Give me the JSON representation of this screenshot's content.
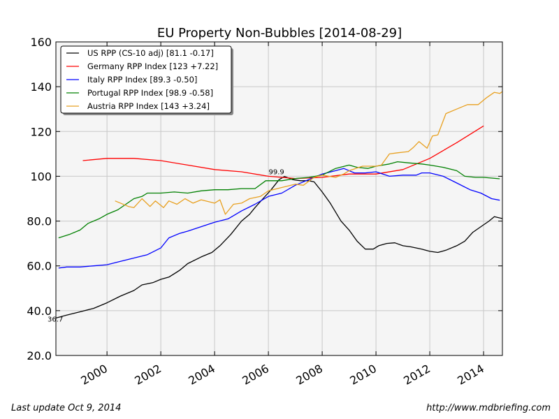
{
  "footer": {
    "last_update": "Last update Oct  9, 2014",
    "url": "http://www.mdbriefing.com"
  },
  "chart_data": {
    "type": "line",
    "title": "EU Property Non-Bubbles  [2014-08-29]",
    "xlabel": "",
    "ylabel": "",
    "xlim": [
      1998.1,
      2014.7
    ],
    "ylim": [
      20,
      160
    ],
    "grid": true,
    "legend_position": "top-left",
    "x_ticks": [
      2000,
      2002,
      2004,
      2006,
      2008,
      2010,
      2012,
      2014
    ],
    "x_tick_labels": [
      "2000",
      "2002",
      "2004",
      "2006",
      "2008",
      "2010",
      "2012",
      "2014"
    ],
    "y_ticks": [
      20,
      40,
      60,
      80,
      100,
      120,
      140,
      160
    ],
    "y_tick_labels": [
      "20.0",
      "40.0",
      "60.0",
      "80.0",
      "100",
      "120",
      "140",
      "160"
    ],
    "annotations": [
      {
        "text": "99.9",
        "x": 2006.3,
        "y": 99.9
      },
      {
        "text": "36.7",
        "x": 1998.1,
        "y": 36.7
      }
    ],
    "series": [
      {
        "name": "US RPP (CS-10 adj) [81.1 -0.17]",
        "color": "#000000",
        "points": [
          [
            1998.1,
            36.7
          ],
          [
            1998.5,
            38
          ],
          [
            1999,
            39.5
          ],
          [
            1999.5,
            41
          ],
          [
            2000,
            43.5
          ],
          [
            2000.5,
            46.5
          ],
          [
            2001,
            49
          ],
          [
            2001.3,
            51.5
          ],
          [
            2001.7,
            52.5
          ],
          [
            2002,
            54
          ],
          [
            2002.3,
            55
          ],
          [
            2002.7,
            58
          ],
          [
            2003,
            61
          ],
          [
            2003.5,
            64
          ],
          [
            2003.9,
            66
          ],
          [
            2004.2,
            69
          ],
          [
            2004.6,
            74
          ],
          [
            2005,
            80
          ],
          [
            2005.3,
            83
          ],
          [
            2005.5,
            86
          ],
          [
            2005.8,
            90
          ],
          [
            2006.1,
            94
          ],
          [
            2006.4,
            98.5
          ],
          [
            2006.6,
            99.9
          ],
          [
            2006.9,
            98.5
          ],
          [
            2007.2,
            98
          ],
          [
            2007.5,
            98
          ],
          [
            2007.7,
            97.5
          ],
          [
            2008,
            93
          ],
          [
            2008.3,
            88
          ],
          [
            2008.7,
            80
          ],
          [
            2009,
            76
          ],
          [
            2009.3,
            71
          ],
          [
            2009.6,
            67.5
          ],
          [
            2009.9,
            67.5
          ],
          [
            2010.1,
            69
          ],
          [
            2010.4,
            70
          ],
          [
            2010.7,
            70.3
          ],
          [
            2011,
            69
          ],
          [
            2011.3,
            68.5
          ],
          [
            2011.7,
            67.5
          ],
          [
            2012,
            66.5
          ],
          [
            2012.3,
            66
          ],
          [
            2012.6,
            67
          ],
          [
            2013,
            69
          ],
          [
            2013.3,
            71
          ],
          [
            2013.6,
            75
          ],
          [
            2013.9,
            77.5
          ],
          [
            2014.2,
            80
          ],
          [
            2014.4,
            82
          ],
          [
            2014.7,
            81.1
          ]
        ]
      },
      {
        "name": "Germany RPP Index [123 +7.22]",
        "color": "#ff0000",
        "points": [
          [
            1999.1,
            107
          ],
          [
            2000,
            108
          ],
          [
            2001,
            108
          ],
          [
            2002,
            107
          ],
          [
            2003,
            105
          ],
          [
            2004,
            103
          ],
          [
            2005,
            102
          ],
          [
            2006,
            100
          ],
          [
            2007,
            99
          ],
          [
            2008,
            99.5
          ],
          [
            2009,
            101
          ],
          [
            2010,
            101
          ],
          [
            2011,
            103
          ],
          [
            2012,
            108
          ],
          [
            2013,
            115
          ],
          [
            2014,
            122.5
          ]
        ]
      },
      {
        "name": "Italy RPP Index [89.3 -0.50]",
        "color": "#0000ff",
        "points": [
          [
            1998.2,
            59
          ],
          [
            1998.5,
            59.5
          ],
          [
            1999,
            59.5
          ],
          [
            1999.5,
            60
          ],
          [
            2000,
            60.5
          ],
          [
            2000.5,
            62
          ],
          [
            2001,
            63.5
          ],
          [
            2001.5,
            65
          ],
          [
            2002,
            68
          ],
          [
            2002.3,
            72.5
          ],
          [
            2002.7,
            74.5
          ],
          [
            2003,
            75.5
          ],
          [
            2003.5,
            77.5
          ],
          [
            2004,
            79.5
          ],
          [
            2004.5,
            81
          ],
          [
            2005,
            84.5
          ],
          [
            2005.5,
            87.5
          ],
          [
            2006,
            91
          ],
          [
            2006.5,
            92.5
          ],
          [
            2007,
            96
          ],
          [
            2007.5,
            98.5
          ],
          [
            2008,
            101
          ],
          [
            2008.5,
            102.5
          ],
          [
            2008.8,
            103.5
          ],
          [
            2009.2,
            101.5
          ],
          [
            2009.6,
            101.5
          ],
          [
            2010,
            102
          ],
          [
            2010.5,
            100
          ],
          [
            2011,
            100.5
          ],
          [
            2011.5,
            100.5
          ],
          [
            2011.7,
            101.5
          ],
          [
            2012,
            101.5
          ],
          [
            2012.5,
            100
          ],
          [
            2013,
            97
          ],
          [
            2013.5,
            94
          ],
          [
            2013.9,
            92.5
          ],
          [
            2014.3,
            90
          ],
          [
            2014.6,
            89.3
          ]
        ]
      },
      {
        "name": "Portugal RPP Index [98.9 -0.58]",
        "color": "#008000",
        "points": [
          [
            1998.2,
            72.5
          ],
          [
            1998.6,
            74
          ],
          [
            1999,
            76
          ],
          [
            1999.3,
            79
          ],
          [
            1999.7,
            81
          ],
          [
            2000,
            83
          ],
          [
            2000.4,
            85
          ],
          [
            2000.7,
            87.5
          ],
          [
            2001,
            90
          ],
          [
            2001.3,
            91
          ],
          [
            2001.5,
            92.5
          ],
          [
            2002,
            92.5
          ],
          [
            2002.5,
            93
          ],
          [
            2003,
            92.5
          ],
          [
            2003.5,
            93.5
          ],
          [
            2004,
            94
          ],
          [
            2004.5,
            94
          ],
          [
            2005,
            94.5
          ],
          [
            2005.5,
            94.5
          ],
          [
            2005.9,
            98
          ],
          [
            2006.5,
            98
          ],
          [
            2007,
            99
          ],
          [
            2007.5,
            99.5
          ],
          [
            2008,
            100.5
          ],
          [
            2008.5,
            103.5
          ],
          [
            2009,
            105
          ],
          [
            2009.3,
            104
          ],
          [
            2009.7,
            103.5
          ],
          [
            2010,
            104.5
          ],
          [
            2010.5,
            105.5
          ],
          [
            2010.8,
            106.5
          ],
          [
            2011.2,
            106
          ],
          [
            2011.7,
            105.5
          ],
          [
            2012,
            105
          ],
          [
            2012.5,
            104
          ],
          [
            2013,
            102.5
          ],
          [
            2013.3,
            100
          ],
          [
            2013.7,
            99.5
          ],
          [
            2014,
            99.5
          ],
          [
            2014.6,
            98.9
          ]
        ]
      },
      {
        "name": "Austria RPP Index [143 +3.24]",
        "color": "#e8a020",
        "points": [
          [
            2000.3,
            89
          ],
          [
            2000.8,
            86.5
          ],
          [
            2001,
            86
          ],
          [
            2001.3,
            90
          ],
          [
            2001.6,
            86.5
          ],
          [
            2001.8,
            89
          ],
          [
            2002.1,
            86
          ],
          [
            2002.3,
            89
          ],
          [
            2002.6,
            87.5
          ],
          [
            2002.9,
            90
          ],
          [
            2003.2,
            88
          ],
          [
            2003.5,
            89.5
          ],
          [
            2004,
            88
          ],
          [
            2004.2,
            89.5
          ],
          [
            2004.4,
            83
          ],
          [
            2004.7,
            87.5
          ],
          [
            2005,
            88
          ],
          [
            2005.3,
            90
          ],
          [
            2005.7,
            91
          ],
          [
            2006,
            93.5
          ],
          [
            2006.5,
            95
          ],
          [
            2007,
            96.5
          ],
          [
            2007.3,
            96
          ],
          [
            2007.7,
            99.5
          ],
          [
            2008,
            100.5
          ],
          [
            2008.5,
            99.5
          ],
          [
            2008.8,
            101
          ],
          [
            2009,
            102.5
          ],
          [
            2009.5,
            104.5
          ],
          [
            2010,
            104.5
          ],
          [
            2010.2,
            105
          ],
          [
            2010.5,
            110
          ],
          [
            2010.8,
            110.5
          ],
          [
            2011.2,
            111
          ],
          [
            2011.4,
            113
          ],
          [
            2011.6,
            115.5
          ],
          [
            2011.9,
            112.5
          ],
          [
            2012.1,
            118
          ],
          [
            2012.3,
            118.5
          ],
          [
            2012.6,
            128
          ],
          [
            2013,
            130
          ],
          [
            2013.4,
            132
          ],
          [
            2013.8,
            132
          ],
          [
            2014.1,
            135
          ],
          [
            2014.4,
            137.5
          ],
          [
            2014.6,
            137
          ],
          [
            2014.9,
            139.5
          ],
          [
            2015.1,
            143
          ]
        ]
      }
    ]
  }
}
